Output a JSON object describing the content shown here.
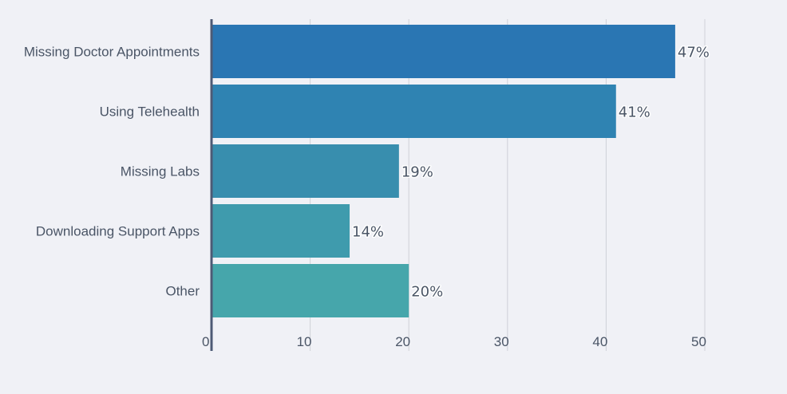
{
  "chart_data": {
    "type": "bar",
    "orientation": "horizontal",
    "categories": [
      "Missing Doctor Appointments",
      "Using Telehealth",
      "Missing Labs",
      "Downloading Support Apps",
      "Other"
    ],
    "values": [
      47,
      41,
      19,
      14,
      20
    ],
    "data_labels": [
      "47%",
      "41%",
      "19%",
      "14%",
      "20%"
    ],
    "xlim": [
      0,
      50
    ],
    "xticks": [
      0,
      10,
      20,
      30,
      40,
      50
    ],
    "xlabel": "",
    "ylabel": "",
    "title": "",
    "grid": true,
    "legend": "none",
    "bar_colors": [
      "#2a76b3",
      "#2f83b2",
      "#388eae",
      "#3f9bad",
      "#46a6ab"
    ],
    "label_color": "#4a5566",
    "axis_color": "#4d5a75",
    "grid_color": "#cfd1d8",
    "background": "#f0f1f6"
  }
}
